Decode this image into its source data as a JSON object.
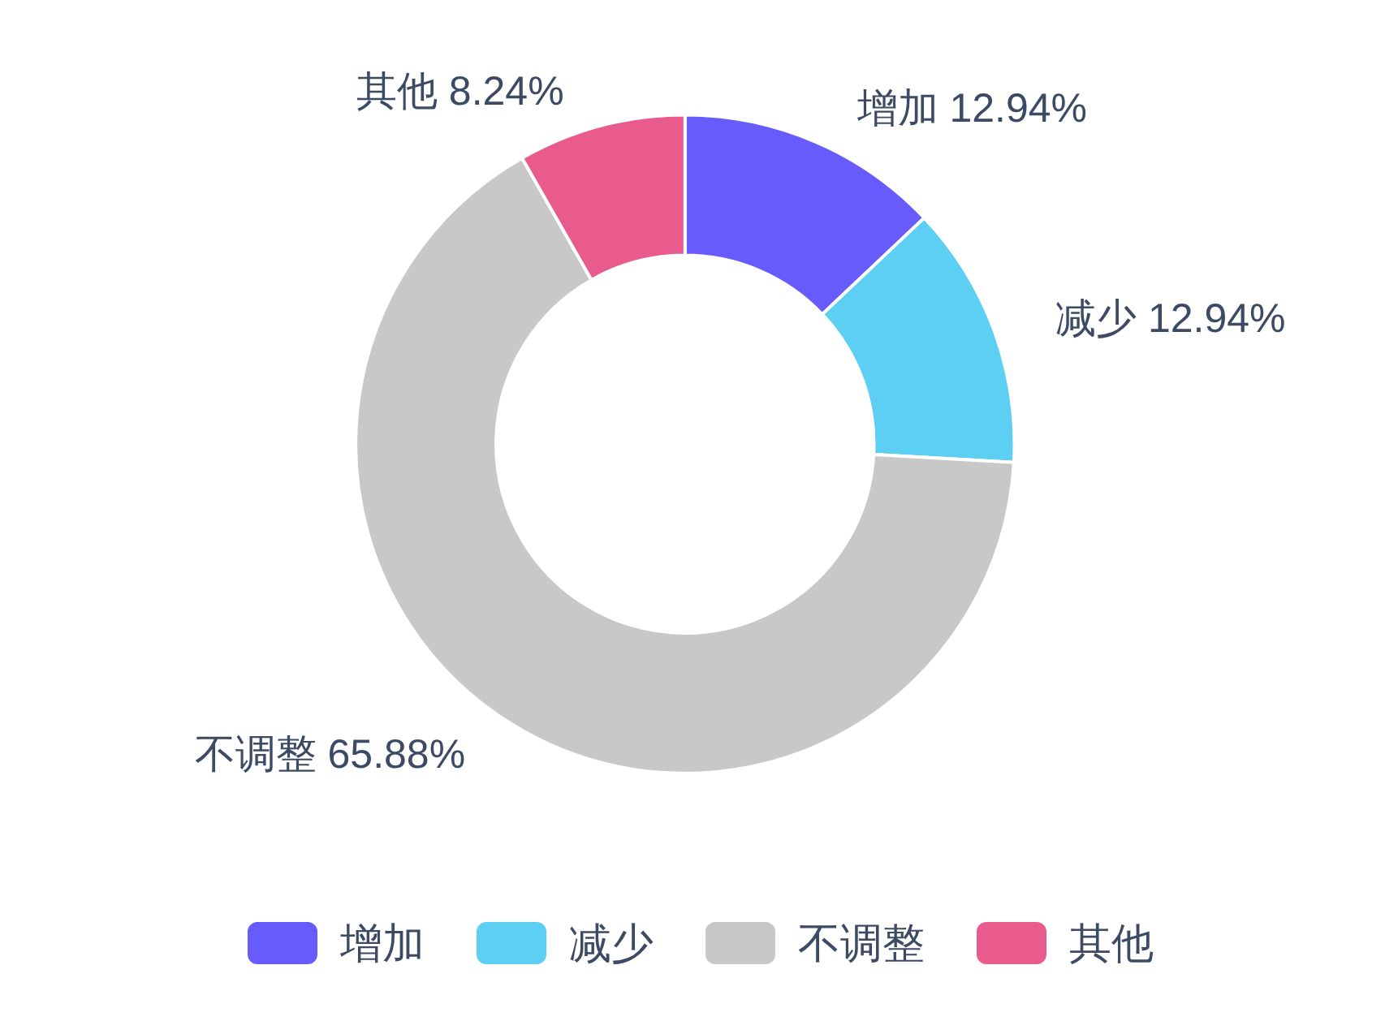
{
  "chart_data": {
    "type": "donut",
    "categories": [
      "增加",
      "减少",
      "不调整",
      "其他"
    ],
    "values": [
      12.94,
      12.94,
      65.88,
      8.24
    ],
    "colors": [
      "#675bfb",
      "#5dcff2",
      "#c8c8c8",
      "#e85b8c"
    ],
    "value_labels": [
      "12.94%",
      "12.94%",
      "65.88%",
      "8.24%"
    ],
    "legend": "bottom"
  }
}
